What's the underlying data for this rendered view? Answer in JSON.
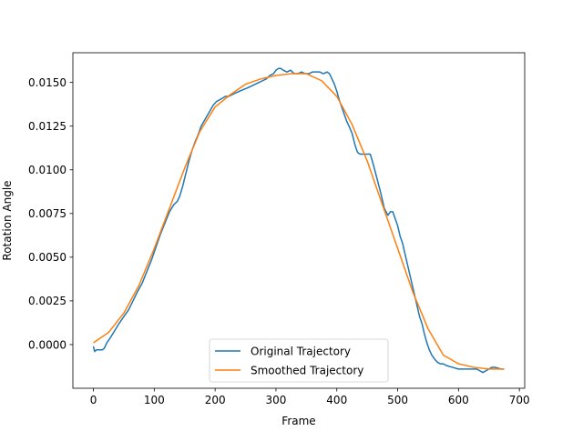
{
  "chart_data": {
    "type": "line",
    "title": "",
    "xlabel": "Frame",
    "ylabel": "Rotation Angle",
    "xlim": [
      -33.75,
      708.75
    ],
    "ylim": [
      -0.0025,
      0.0167
    ],
    "xticks": [
      0,
      100,
      200,
      300,
      400,
      500,
      600,
      700
    ],
    "xtick_labels": [
      "0",
      "100",
      "200",
      "300",
      "400",
      "500",
      "600",
      "700"
    ],
    "yticks": [
      0.0,
      0.0025,
      0.005,
      0.0075,
      0.01,
      0.0125,
      0.015
    ],
    "ytick_labels": [
      "0.0000",
      "0.0025",
      "0.0050",
      "0.0075",
      "0.0100",
      "0.0125",
      "0.0150"
    ],
    "grid": false,
    "legend_position": "lower-center",
    "series": [
      {
        "name": "Original Trajectory",
        "color": "#1f77b4",
        "x": [
          0,
          2,
          5,
          10,
          15,
          18,
          22,
          28,
          35,
          42,
          50,
          58,
          65,
          72,
          80,
          88,
          95,
          102,
          110,
          118,
          125,
          132,
          138,
          142,
          147,
          152,
          157,
          162,
          167,
          172,
          177,
          182,
          187,
          192,
          197,
          202,
          207,
          212,
          217,
          222,
          228,
          234,
          240,
          247,
          254,
          260,
          266,
          272,
          278,
          284,
          290,
          296,
          300,
          304,
          308,
          312,
          318,
          324,
          330,
          336,
          342,
          348,
          354,
          360,
          366,
          372,
          378,
          384,
          388,
          392,
          396,
          400,
          404,
          408,
          412,
          416,
          420,
          425,
          430,
          434,
          438,
          442,
          446,
          450,
          455,
          460,
          466,
          472,
          478,
          484,
          488,
          492,
          496,
          500,
          504,
          508,
          512,
          516,
          520,
          524,
          528,
          532,
          536,
          540,
          544,
          548,
          552,
          556,
          560,
          565,
          570,
          575,
          580,
          590,
          600,
          610,
          620,
          630,
          635,
          640,
          645,
          650,
          655,
          660,
          670,
          675
        ],
        "y": [
          -0.0001,
          -0.0004,
          -0.0003,
          -0.0003,
          -0.0003,
          -0.0002,
          0.0001,
          0.0004,
          0.0008,
          0.0012,
          0.0016,
          0.002,
          0.0025,
          0.003,
          0.0035,
          0.0042,
          0.0048,
          0.0055,
          0.0063,
          0.007,
          0.0076,
          0.008,
          0.0082,
          0.0085,
          0.0091,
          0.0098,
          0.0105,
          0.0111,
          0.0116,
          0.012,
          0.0125,
          0.0128,
          0.0131,
          0.0134,
          0.0137,
          0.0139,
          0.014,
          0.0141,
          0.0142,
          0.0142,
          0.0143,
          0.0144,
          0.0145,
          0.0146,
          0.0147,
          0.0148,
          0.0149,
          0.015,
          0.0151,
          0.0152,
          0.0154,
          0.0155,
          0.0157,
          0.0158,
          0.0158,
          0.0157,
          0.0156,
          0.0157,
          0.0155,
          0.0155,
          0.0156,
          0.0155,
          0.0155,
          0.0156,
          0.0156,
          0.0156,
          0.0155,
          0.0156,
          0.0155,
          0.0152,
          0.0149,
          0.0145,
          0.014,
          0.0136,
          0.0132,
          0.0128,
          0.0125,
          0.0121,
          0.0114,
          0.011,
          0.0109,
          0.0109,
          0.0109,
          0.0109,
          0.0109,
          0.0103,
          0.0095,
          0.0087,
          0.0078,
          0.0074,
          0.0076,
          0.0076,
          0.0072,
          0.0068,
          0.0062,
          0.0058,
          0.0052,
          0.0046,
          0.004,
          0.0034,
          0.0028,
          0.0022,
          0.0016,
          0.0012,
          0.0006,
          0.0001,
          -0.0003,
          -0.0006,
          -0.0008,
          -0.001,
          -0.0011,
          -0.0011,
          -0.0012,
          -0.0013,
          -0.0014,
          -0.0014,
          -0.0014,
          -0.0014,
          -0.0015,
          -0.0016,
          -0.0015,
          -0.0014,
          -0.0013,
          -0.0013,
          -0.0014,
          -0.0014
        ]
      },
      {
        "name": "Smoothed Trajectory",
        "color": "#ff7f0e",
        "x": [
          0,
          25,
          50,
          75,
          100,
          125,
          150,
          175,
          200,
          225,
          250,
          275,
          300,
          325,
          350,
          375,
          400,
          425,
          450,
          475,
          500,
          525,
          550,
          575,
          600,
          625,
          650,
          675
        ],
        "y": [
          0.0001,
          0.0007,
          0.0018,
          0.0034,
          0.0055,
          0.0078,
          0.0101,
          0.0122,
          0.0136,
          0.0143,
          0.0149,
          0.0152,
          0.0154,
          0.0155,
          0.0155,
          0.0151,
          0.0142,
          0.0126,
          0.0105,
          0.008,
          0.0055,
          0.003,
          0.0009,
          -0.0006,
          -0.0011,
          -0.0013,
          -0.0014,
          -0.0014
        ]
      }
    ]
  }
}
